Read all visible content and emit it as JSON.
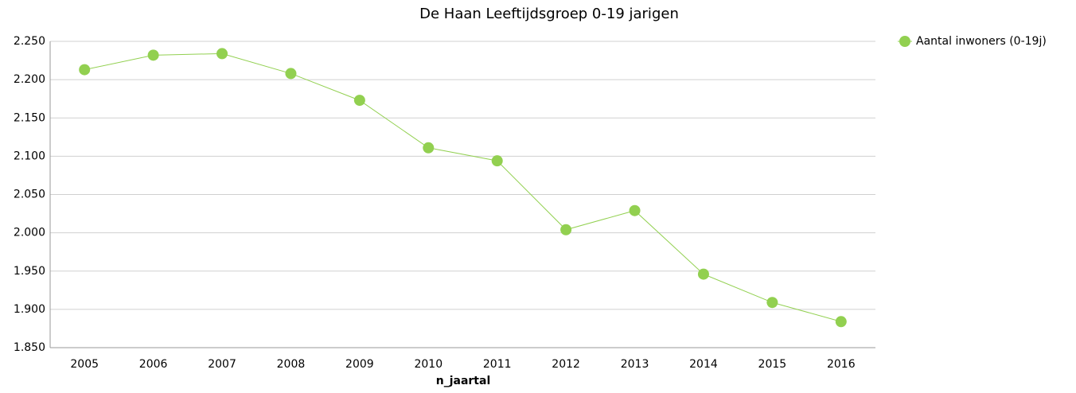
{
  "chart_data": {
    "type": "line",
    "title": "De Haan  Leeftijdsgroep 0-19 jarigen",
    "x_label": "n_jaartal",
    "categories": [
      "2005",
      "2006",
      "2007",
      "2008",
      "2009",
      "2010",
      "2011",
      "2012",
      "2013",
      "2014",
      "2015",
      "2016"
    ],
    "series": [
      {
        "name": "Aantal inwoners (0-19j)",
        "color": "#92d050",
        "values": [
          2213,
          2232,
          2234,
          2208,
          2173,
          2111,
          2094,
          2004,
          2029,
          1946,
          1909,
          1884
        ]
      }
    ],
    "ylim": [
      1850,
      2250
    ],
    "yticks": [
      {
        "value": 1850,
        "label": "1.850"
      },
      {
        "value": 1900,
        "label": "1.900"
      },
      {
        "value": 1950,
        "label": "1.950"
      },
      {
        "value": 2000,
        "label": "2.000"
      },
      {
        "value": 2050,
        "label": "2.050"
      },
      {
        "value": 2100,
        "label": "2.100"
      },
      {
        "value": 2150,
        "label": "2.150"
      },
      {
        "value": 2200,
        "label": "2.200"
      },
      {
        "value": 2250,
        "label": "2.250"
      }
    ],
    "grid": true,
    "legend": "top-right"
  }
}
